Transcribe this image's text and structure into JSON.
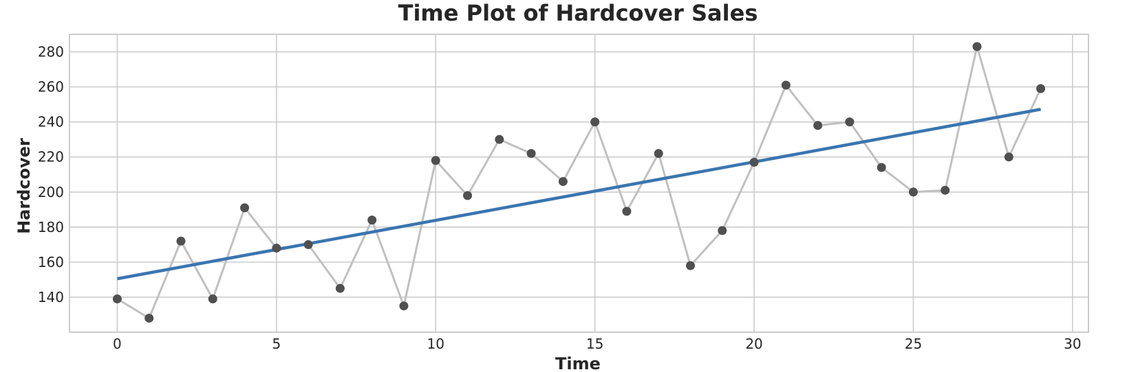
{
  "chart_data": {
    "type": "line",
    "title": "Time Plot of Hardcover Sales",
    "xlabel": "Time",
    "ylabel": "Hardcover",
    "xlim": [
      -1.5,
      30.5
    ],
    "ylim": [
      120,
      290
    ],
    "xticks": [
      0,
      5,
      10,
      15,
      20,
      25,
      30
    ],
    "yticks": [
      140,
      160,
      180,
      200,
      220,
      240,
      260,
      280
    ],
    "grid": true,
    "legend": "none",
    "x": [
      0,
      1,
      2,
      3,
      4,
      5,
      6,
      7,
      8,
      9,
      10,
      11,
      12,
      13,
      14,
      15,
      16,
      17,
      18,
      19,
      20,
      21,
      22,
      23,
      24,
      25,
      26,
      27,
      28,
      29
    ],
    "series": [
      {
        "values": [
          139,
          128,
          172,
          139,
          191,
          168,
          170,
          145,
          184,
          135,
          218,
          198,
          230,
          222,
          206,
          240,
          189,
          222,
          158,
          178,
          217,
          261,
          238,
          240,
          214,
          200,
          201,
          283,
          220,
          259
        ],
        "color": "#c0c0c0",
        "marker_color": "#505050"
      }
    ],
    "trend": {
      "x": [
        0,
        29
      ],
      "values": [
        150.5,
        247.2
      ],
      "color": "#3a75b0"
    }
  }
}
